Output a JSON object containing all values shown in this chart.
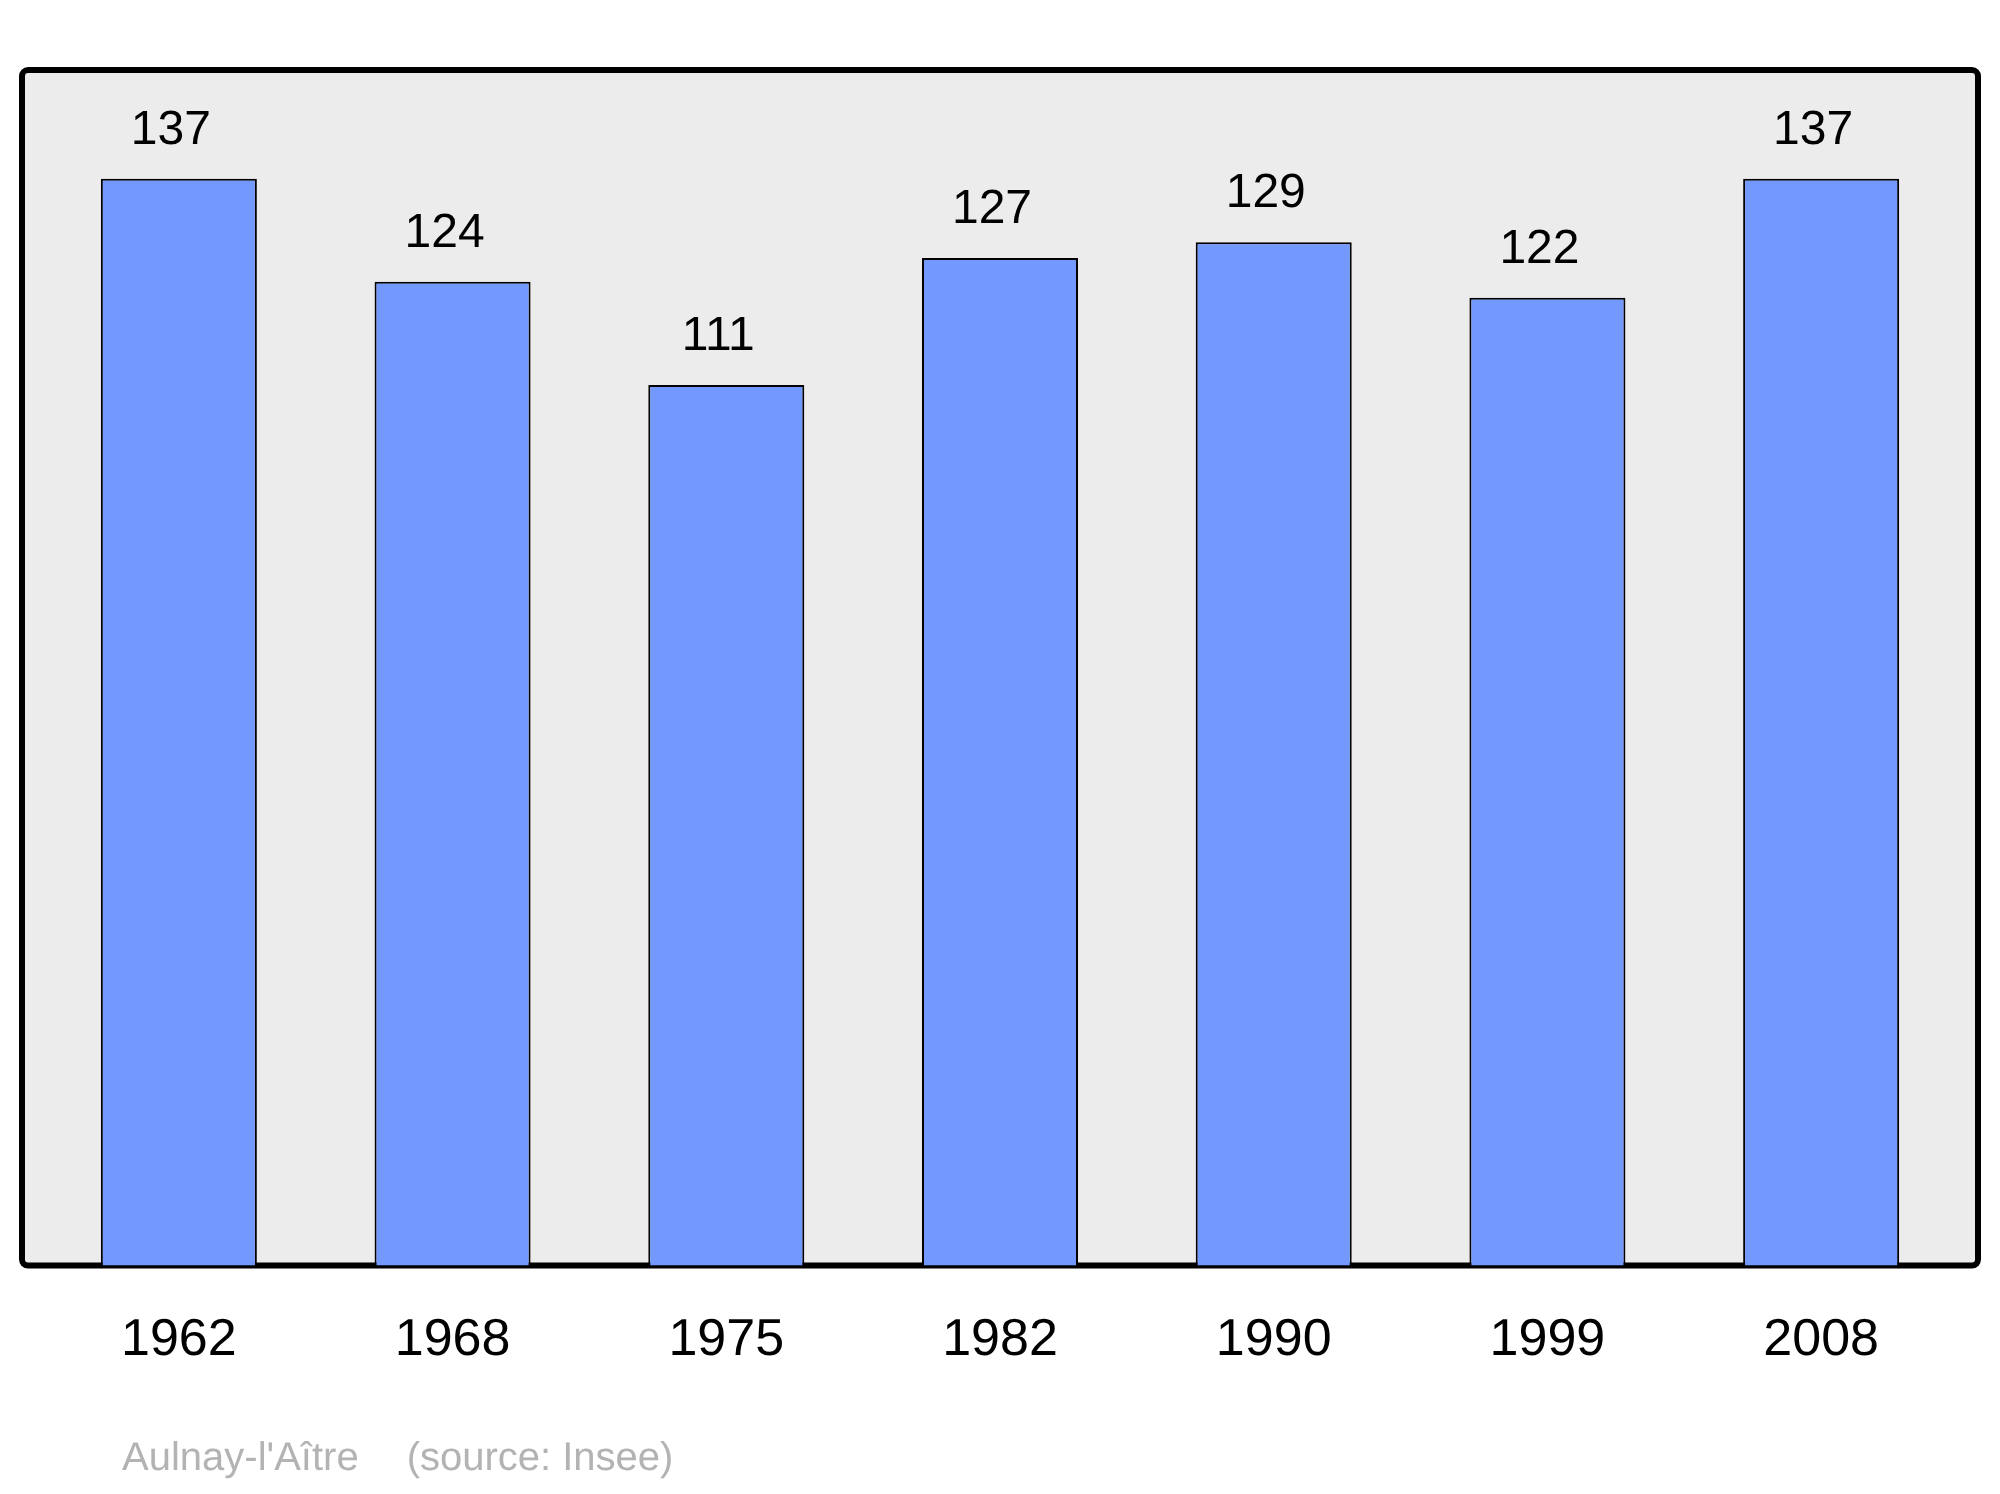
{
  "chart_data": {
    "type": "bar",
    "categories": [
      "1962",
      "1968",
      "1975",
      "1982",
      "1990",
      "1999",
      "2008"
    ],
    "values": [
      137,
      124,
      111,
      127,
      129,
      122,
      137
    ],
    "color": "#7399ff",
    "data_labels": true,
    "grid": false,
    "legend": false,
    "annotations": [
      "Aulnay-l'Aître",
      "(source: Insee)"
    ]
  }
}
